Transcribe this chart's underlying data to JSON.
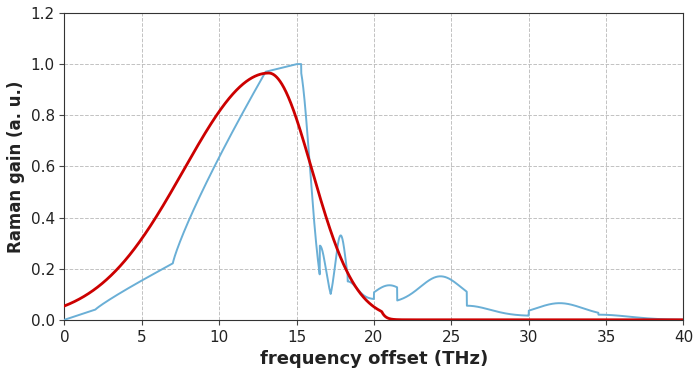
{
  "title": "",
  "xlabel": "frequency offset (THz)",
  "ylabel": "Raman gain (a. u.)",
  "xlim": [
    0,
    40
  ],
  "ylim": [
    0,
    1.2
  ],
  "xticks": [
    0,
    5,
    10,
    15,
    20,
    25,
    30,
    35,
    40
  ],
  "yticks": [
    0,
    0.2,
    0.4,
    0.6,
    0.8,
    1.0,
    1.2
  ],
  "red_color": "#cc0000",
  "blue_color": "#6aafd6",
  "background_color": "#ffffff",
  "grid_color": "#bbbbbb",
  "xlabel_fontsize": 13,
  "ylabel_fontsize": 12,
  "tick_fontsize": 11
}
